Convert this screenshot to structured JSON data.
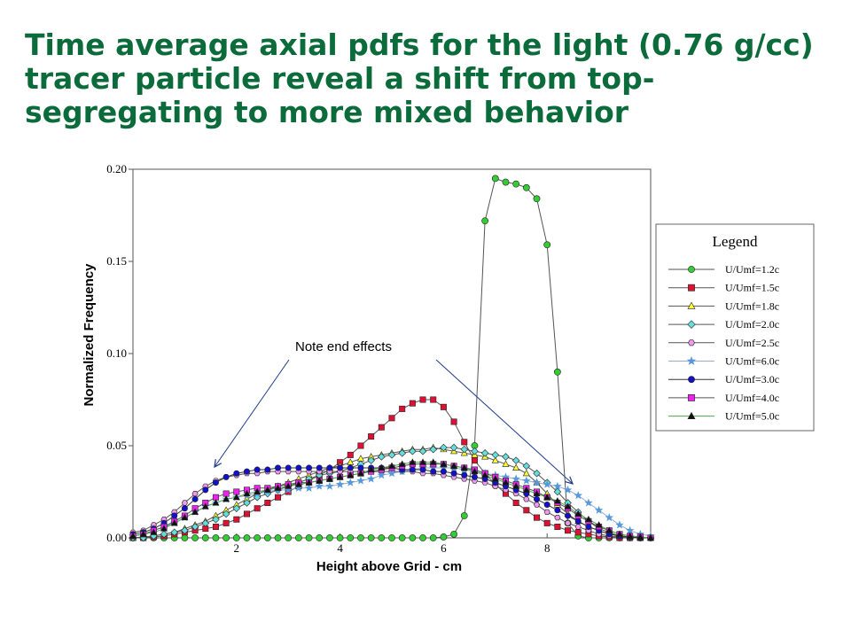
{
  "title": "Time average axial pdfs for the light (0.76 g/cc) tracer particle reveal a shift from top-segregating to more mixed behavior",
  "annotation": "Note end effects",
  "chart_data": {
    "type": "line",
    "xlabel": "Height above Grid - cm",
    "ylabel": "Normalized Frequency",
    "xlim": [
      0,
      10
    ],
    "ylim": [
      0,
      0.2
    ],
    "xticks": [
      "2",
      "4",
      "6",
      "8"
    ],
    "xtick_values": [
      2,
      4,
      6,
      8
    ],
    "yticks": [
      "0.00",
      "0.05",
      "0.10",
      "0.15",
      "0.20"
    ],
    "ytick_values": [
      0,
      0.05,
      0.1,
      0.15,
      0.2
    ],
    "grid": false,
    "legend": {
      "title": "Legend",
      "placement": "right, outside plot"
    },
    "x": [
      0,
      0.2,
      0.4,
      0.6,
      0.8,
      1.0,
      1.2,
      1.4,
      1.6,
      1.8,
      2.0,
      2.2,
      2.4,
      2.6,
      2.8,
      3.0,
      3.2,
      3.4,
      3.6,
      3.8,
      4.0,
      4.2,
      4.4,
      4.6,
      4.8,
      5.0,
      5.2,
      5.4,
      5.6,
      5.8,
      6.0,
      6.2,
      6.4,
      6.6,
      6.8,
      7.0,
      7.2,
      7.4,
      7.6,
      7.8,
      8.0,
      8.2,
      8.4,
      8.6,
      8.8,
      9.0,
      9.2,
      9.4,
      9.6,
      9.8,
      10.0
    ],
    "series": [
      {
        "name": "U/Umf=1.2c",
        "color": "#33cc33",
        "marker": "circle",
        "line": "#555555",
        "values": [
          0,
          0,
          0,
          0,
          0,
          0,
          0,
          0,
          0,
          0,
          0,
          0,
          0,
          0,
          0,
          0,
          0,
          0,
          0,
          0,
          0,
          0,
          0,
          0,
          0,
          0,
          0,
          0,
          0,
          0,
          0.0005,
          0.002,
          0.012,
          0.05,
          0.172,
          0.195,
          0.193,
          0.192,
          0.19,
          0.184,
          0.159,
          0.09,
          0.008,
          0.001,
          0,
          0,
          0,
          0,
          0,
          0,
          0
        ]
      },
      {
        "name": "U/Umf=1.5c",
        "color": "#dd1133",
        "marker": "square",
        "line": "#555555",
        "values": [
          0,
          0,
          0.0005,
          0.001,
          0.002,
          0.003,
          0.004,
          0.005,
          0.006,
          0.008,
          0.01,
          0.013,
          0.016,
          0.019,
          0.022,
          0.025,
          0.028,
          0.031,
          0.034,
          0.037,
          0.041,
          0.045,
          0.05,
          0.055,
          0.06,
          0.065,
          0.07,
          0.073,
          0.075,
          0.075,
          0.071,
          0.063,
          0.052,
          0.042,
          0.035,
          0.029,
          0.024,
          0.019,
          0.015,
          0.011,
          0.008,
          0.006,
          0.004,
          0.003,
          0.002,
          0.001,
          0.0005,
          0,
          0,
          0,
          0
        ]
      },
      {
        "name": "U/Umf=1.8c",
        "color": "#ffff33",
        "marker": "triangle",
        "line": "#555555",
        "values": [
          0,
          0.0005,
          0.001,
          0.002,
          0.003,
          0.005,
          0.007,
          0.009,
          0.012,
          0.015,
          0.018,
          0.021,
          0.024,
          0.026,
          0.028,
          0.03,
          0.032,
          0.034,
          0.036,
          0.038,
          0.039,
          0.041,
          0.043,
          0.044,
          0.045,
          0.046,
          0.047,
          0.048,
          0.048,
          0.049,
          0.048,
          0.047,
          0.046,
          0.045,
          0.044,
          0.042,
          0.04,
          0.038,
          0.035,
          0.03,
          0.024,
          0.018,
          0.013,
          0.009,
          0.006,
          0.004,
          0.002,
          0.001,
          0.0005,
          0,
          0
        ]
      },
      {
        "name": "U/Umf=2.0c",
        "color": "#66dddd",
        "marker": "diamond",
        "line": "#555555",
        "values": [
          0,
          0,
          0.001,
          0.002,
          0.003,
          0.004,
          0.006,
          0.008,
          0.01,
          0.013,
          0.016,
          0.019,
          0.022,
          0.024,
          0.026,
          0.028,
          0.03,
          0.032,
          0.034,
          0.035,
          0.036,
          0.038,
          0.04,
          0.042,
          0.044,
          0.045,
          0.046,
          0.047,
          0.047,
          0.048,
          0.049,
          0.049,
          0.048,
          0.047,
          0.046,
          0.045,
          0.044,
          0.042,
          0.039,
          0.035,
          0.03,
          0.025,
          0.019,
          0.014,
          0.009,
          0.005,
          0.003,
          0.001,
          0.0005,
          0,
          0
        ]
      },
      {
        "name": "U/Umf=2.5c",
        "color": "#ee99ee",
        "marker": "hexagon",
        "line": "#555555",
        "values": [
          0.003,
          0.004,
          0.007,
          0.01,
          0.014,
          0.019,
          0.024,
          0.028,
          0.031,
          0.033,
          0.034,
          0.035,
          0.035,
          0.036,
          0.036,
          0.036,
          0.036,
          0.036,
          0.036,
          0.036,
          0.036,
          0.036,
          0.036,
          0.036,
          0.036,
          0.036,
          0.036,
          0.036,
          0.035,
          0.035,
          0.034,
          0.033,
          0.032,
          0.031,
          0.03,
          0.028,
          0.026,
          0.024,
          0.021,
          0.018,
          0.014,
          0.011,
          0.008,
          0.006,
          0.004,
          0.002,
          0.001,
          0.0005,
          0,
          0,
          0
        ]
      },
      {
        "name": "U/Umf=6.0c",
        "color": "#5599dd",
        "marker": "star",
        "line": "#99aacc",
        "values": [
          0.001,
          0.002,
          0.004,
          0.006,
          0.008,
          0.011,
          0.014,
          0.017,
          0.019,
          0.021,
          0.022,
          0.023,
          0.024,
          0.025,
          0.026,
          0.026,
          0.027,
          0.027,
          0.028,
          0.028,
          0.029,
          0.03,
          0.031,
          0.032,
          0.034,
          0.035,
          0.036,
          0.037,
          0.038,
          0.038,
          0.038,
          0.038,
          0.037,
          0.036,
          0.035,
          0.034,
          0.033,
          0.032,
          0.031,
          0.03,
          0.029,
          0.028,
          0.026,
          0.023,
          0.019,
          0.015,
          0.011,
          0.007,
          0.004,
          0.002,
          0.001
        ]
      },
      {
        "name": "U/Umf=3.0c",
        "color": "#1111cc",
        "marker": "circle",
        "line": "#333333",
        "values": [
          0.002,
          0.003,
          0.005,
          0.008,
          0.012,
          0.016,
          0.021,
          0.026,
          0.03,
          0.033,
          0.035,
          0.036,
          0.037,
          0.037,
          0.038,
          0.038,
          0.038,
          0.038,
          0.038,
          0.038,
          0.038,
          0.038,
          0.038,
          0.038,
          0.038,
          0.038,
          0.037,
          0.037,
          0.037,
          0.036,
          0.036,
          0.035,
          0.034,
          0.033,
          0.032,
          0.03,
          0.028,
          0.026,
          0.024,
          0.021,
          0.018,
          0.015,
          0.012,
          0.009,
          0.006,
          0.004,
          0.002,
          0.001,
          0.0005,
          0,
          0
        ]
      },
      {
        "name": "U/Umf=4.0c",
        "color": "#ee22ee",
        "marker": "square",
        "line": "#555555",
        "values": [
          0.001,
          0.002,
          0.004,
          0.006,
          0.009,
          0.012,
          0.016,
          0.019,
          0.022,
          0.024,
          0.025,
          0.026,
          0.027,
          0.027,
          0.028,
          0.029,
          0.03,
          0.03,
          0.031,
          0.032,
          0.033,
          0.034,
          0.035,
          0.036,
          0.037,
          0.038,
          0.039,
          0.04,
          0.04,
          0.04,
          0.04,
          0.039,
          0.038,
          0.037,
          0.035,
          0.033,
          0.031,
          0.029,
          0.027,
          0.025,
          0.022,
          0.019,
          0.016,
          0.012,
          0.009,
          0.006,
          0.004,
          0.002,
          0.001,
          0.0005,
          0
        ]
      },
      {
        "name": "U/Umf=5.0c",
        "color": "#111111",
        "marker": "triangle",
        "line": "#44aa44",
        "values": [
          0.001,
          0.002,
          0.003,
          0.005,
          0.008,
          0.011,
          0.014,
          0.017,
          0.019,
          0.021,
          0.022,
          0.024,
          0.025,
          0.026,
          0.027,
          0.028,
          0.029,
          0.03,
          0.031,
          0.032,
          0.033,
          0.034,
          0.035,
          0.037,
          0.038,
          0.039,
          0.04,
          0.041,
          0.041,
          0.041,
          0.04,
          0.039,
          0.038,
          0.036,
          0.034,
          0.032,
          0.03,
          0.028,
          0.026,
          0.024,
          0.022,
          0.02,
          0.017,
          0.013,
          0.01,
          0.007,
          0.004,
          0.002,
          0.001,
          0.0005,
          0
        ]
      }
    ]
  }
}
